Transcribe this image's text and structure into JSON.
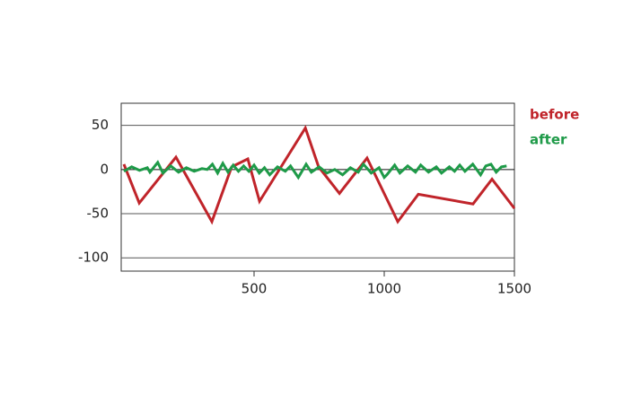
{
  "chart_data": {
    "type": "line",
    "xlim": [
      0,
      1500
    ],
    "xticks": [
      500,
      1000,
      1500
    ],
    "ylim": [
      -115,
      75
    ],
    "yticks": [
      -100,
      -50,
      0,
      50
    ],
    "grid": true,
    "legend": "right",
    "series": [
      {
        "name": "before",
        "color": "#c0242a",
        "x": [
          0,
          59,
          200,
          338,
          414,
          476,
          521,
          697,
          748,
          828,
          934,
          1052,
          1131,
          1341,
          1414,
          1500
        ],
        "values": [
          6,
          -38,
          14,
          -59,
          3,
          12,
          -36,
          47,
          3,
          -27,
          13,
          -59,
          -28,
          -39,
          -11,
          -44
        ]
      },
      {
        "name": "after",
        "color": "#1e9a48",
        "x": [
          0,
          30,
          60,
          90,
          100,
          130,
          150,
          180,
          210,
          240,
          270,
          300,
          320,
          340,
          360,
          380,
          400,
          420,
          440,
          460,
          480,
          500,
          520,
          540,
          560,
          590,
          620,
          640,
          670,
          700,
          720,
          750,
          780,
          810,
          840,
          870,
          900,
          920,
          950,
          980,
          1000,
          1010,
          1040,
          1060,
          1090,
          1120,
          1140,
          1170,
          1200,
          1220,
          1250,
          1270,
          1290,
          1310,
          1340,
          1370,
          1390,
          1410,
          1430,
          1450,
          1470
        ],
        "values": [
          -2,
          3,
          -1,
          2,
          -3,
          8,
          -4,
          4,
          -3,
          2,
          -2,
          1,
          0,
          6,
          -4,
          7,
          -3,
          5,
          -2,
          4,
          -2,
          5,
          -4,
          2,
          -6,
          3,
          -2,
          4,
          -9,
          6,
          -3,
          3,
          -4,
          0,
          -6,
          2,
          -3,
          6,
          -4,
          2,
          -9,
          -6,
          5,
          -4,
          4,
          -3,
          5,
          -3,
          3,
          -4,
          3,
          -2,
          5,
          -2,
          6,
          -6,
          4,
          6,
          -3,
          3,
          4
        ]
      }
    ]
  }
}
